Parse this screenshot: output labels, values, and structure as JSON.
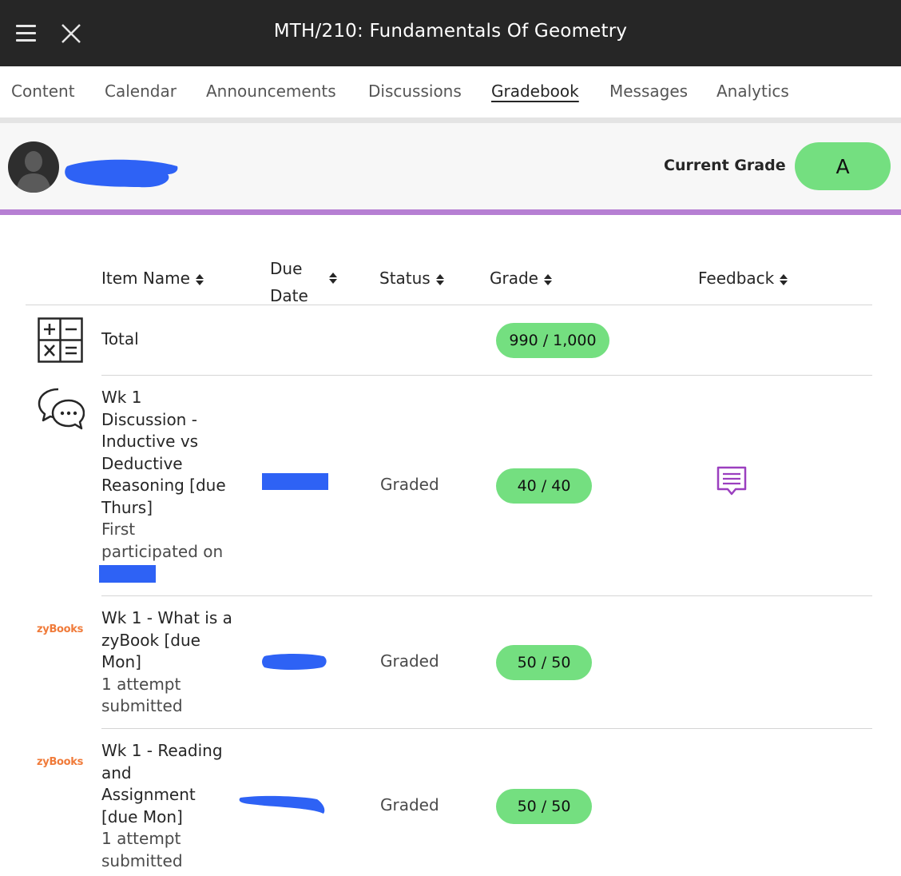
{
  "header": {
    "course_title": "MTH/210: Fundamentals Of Geometry"
  },
  "tabs": [
    {
      "label": "Content"
    },
    {
      "label": "Calendar"
    },
    {
      "label": "Announcements"
    },
    {
      "label": "Discussions"
    },
    {
      "label": "Gradebook",
      "active": true
    },
    {
      "label": "Messages"
    },
    {
      "label": "Analytics"
    }
  ],
  "student": {
    "current_grade_label": "Current Grade",
    "current_grade": "A"
  },
  "columns": {
    "item_name": "Item Name",
    "due_date_line1": "Due",
    "due_date_line2": "Date",
    "status": "Status",
    "grade": "Grade",
    "feedback": "Feedback"
  },
  "total": {
    "label": "Total",
    "grade": "990 / 1,000"
  },
  "items": [
    {
      "name_lines": [
        "Wk 1",
        "Discussion -",
        "Inductive vs",
        "Deductive",
        "Reasoning [due",
        "Thurs]"
      ],
      "sub_lines": [
        "First",
        "participated on"
      ],
      "status": "Graded",
      "grade": "40 / 40",
      "icon": "discussion-icon",
      "has_feedback": true
    },
    {
      "name_lines": [
        "Wk 1 - What is a",
        "zyBook [due",
        "Mon]"
      ],
      "sub_lines": [
        "1 attempt",
        "submitted"
      ],
      "status": "Graded",
      "grade": "50 / 50",
      "icon": "zybooks-logo",
      "logo_text": "zyBooks"
    },
    {
      "name_lines": [
        "Wk 1 - Reading",
        "and",
        "Assignment",
        "[due Mon]"
      ],
      "sub_lines": [
        "1 attempt",
        "submitted"
      ],
      "status": "Graded",
      "grade": "50 / 50",
      "icon": "zybooks-logo",
      "logo_text": "zyBooks"
    }
  ],
  "colors": {
    "header_bg": "#262626",
    "grade_pill": "#74df80",
    "accent": "#b67fd3",
    "redaction": "#2e62f5",
    "zybooks": "#f07b3a",
    "feedback_icon": "#9b3fbf"
  }
}
